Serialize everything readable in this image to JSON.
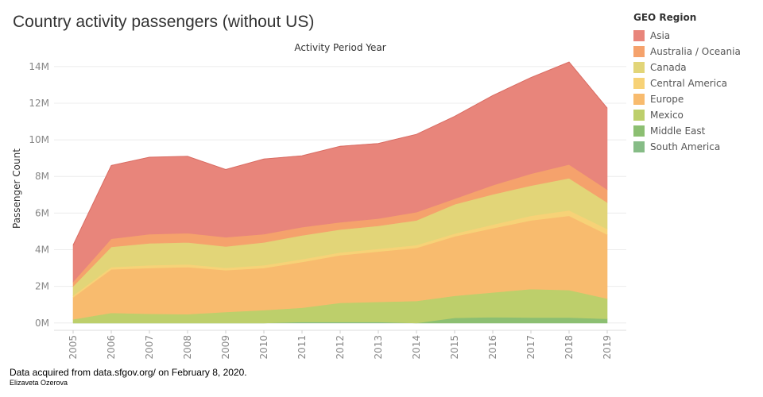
{
  "title": "Country activity passengers (without US)",
  "footer": {
    "source": "Data acquired from data.sfgov.org/ on February 8, 2020.",
    "author": "Elizaveta Ozerova"
  },
  "chart_data": {
    "type": "area",
    "stacked": true,
    "title": "Country activity passengers (without US)",
    "subtitle": "Activity Period Year",
    "xlabel": "",
    "ylabel": "Passenger Count",
    "x": [
      2005,
      2006,
      2007,
      2008,
      2009,
      2010,
      2011,
      2012,
      2013,
      2014,
      2015,
      2016,
      2017,
      2018,
      2019
    ],
    "ylim": [
      -400000,
      14600000
    ],
    "yticks": [
      0,
      2000000,
      4000000,
      6000000,
      8000000,
      10000000,
      12000000,
      14000000
    ],
    "ytick_labels": [
      "0M",
      "2M",
      "4M",
      "6M",
      "8M",
      "10M",
      "12M",
      "14M"
    ],
    "legend_title": "GEO Region",
    "legend_position": "right",
    "grid": true,
    "series": [
      {
        "name": "South America",
        "color": "#86bc86",
        "values": [
          0,
          0,
          0,
          0,
          0,
          0,
          50000,
          50000,
          50000,
          0,
          0,
          0,
          0,
          0,
          0
        ]
      },
      {
        "name": "Middle East",
        "color": "#8cbf72",
        "values": [
          0,
          0,
          0,
          0,
          0,
          0,
          0,
          0,
          0,
          0,
          280000,
          320000,
          300000,
          300000,
          230000
        ]
      },
      {
        "name": "Mexico",
        "color": "#bdcf6b",
        "values": [
          200000,
          550000,
          500000,
          480000,
          600000,
          700000,
          780000,
          1050000,
          1100000,
          1200000,
          1200000,
          1350000,
          1550000,
          1500000,
          1100000
        ]
      },
      {
        "name": "Europe",
        "color": "#f8bb6e",
        "values": [
          1200000,
          2380000,
          2500000,
          2570000,
          2280000,
          2300000,
          2500000,
          2600000,
          2750000,
          2900000,
          3250000,
          3500000,
          3750000,
          4050000,
          3500000
        ]
      },
      {
        "name": "Central America",
        "color": "#f7d277",
        "values": [
          100000,
          120000,
          150000,
          150000,
          130000,
          150000,
          150000,
          150000,
          150000,
          150000,
          150000,
          200000,
          250000,
          300000,
          300000
        ]
      },
      {
        "name": "Canada",
        "color": "#e2d578",
        "values": [
          500000,
          1100000,
          1200000,
          1200000,
          1170000,
          1250000,
          1300000,
          1250000,
          1250000,
          1350000,
          1600000,
          1650000,
          1650000,
          1750000,
          1450000
        ]
      },
      {
        "name": "Australia / Oceania",
        "color": "#f5a26c",
        "values": [
          250000,
          450000,
          500000,
          500000,
          500000,
          450000,
          450000,
          400000,
          400000,
          450000,
          300000,
          500000,
          650000,
          750000,
          700000
        ]
      },
      {
        "name": "Asia",
        "color": "#e8857b",
        "values": [
          2000000,
          4000000,
          4200000,
          4200000,
          3700000,
          4100000,
          3900000,
          4150000,
          4100000,
          4250000,
          4500000,
          4900000,
          5250000,
          5600000,
          4450000
        ]
      }
    ]
  }
}
